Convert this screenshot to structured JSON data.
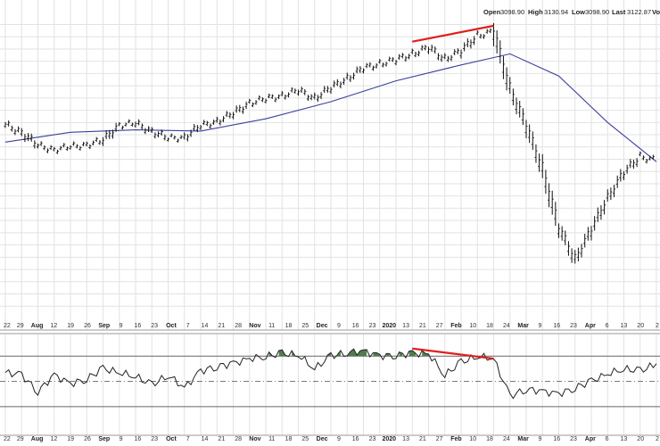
{
  "ohlc": {
    "open_label": "Open",
    "open_value": "3098.90",
    "high_label": "High",
    "high_value": "3130.94",
    "low_label": "Low",
    "low_value": "3098.90",
    "last_label": "Last",
    "last_value": "3122.87",
    "extra_label": "Volu"
  },
  "colors": {
    "price_bar": "#111111",
    "moving_average": "#3b3f9e",
    "trendline": "#e0201c",
    "oscillator": "#222222",
    "overbought_fill": "#4e7d4b",
    "oversold_fill": "#8e3f3c",
    "grid": "#e2e2e2",
    "threshold": "#666666"
  },
  "x_axis_labels": [
    {
      "text": "22",
      "major": false
    },
    {
      "text": "29",
      "major": false
    },
    {
      "text": "Aug",
      "major": true
    },
    {
      "text": "12",
      "major": false
    },
    {
      "text": "19",
      "major": false
    },
    {
      "text": "26",
      "major": false
    },
    {
      "text": "Sep",
      "major": true
    },
    {
      "text": "9",
      "major": false
    },
    {
      "text": "16",
      "major": false
    },
    {
      "text": "23",
      "major": false
    },
    {
      "text": "Oct",
      "major": true
    },
    {
      "text": "7",
      "major": false
    },
    {
      "text": "14",
      "major": false
    },
    {
      "text": "21",
      "major": false
    },
    {
      "text": "28",
      "major": false
    },
    {
      "text": "Nov",
      "major": true
    },
    {
      "text": "11",
      "major": false
    },
    {
      "text": "18",
      "major": false
    },
    {
      "text": "25",
      "major": false
    },
    {
      "text": "Dec",
      "major": true
    },
    {
      "text": "9",
      "major": false
    },
    {
      "text": "16",
      "major": false
    },
    {
      "text": "23",
      "major": false
    },
    {
      "text": "2020",
      "major": true
    },
    {
      "text": "13",
      "major": false
    },
    {
      "text": "21",
      "major": false
    },
    {
      "text": "27",
      "major": false
    },
    {
      "text": "Feb",
      "major": true
    },
    {
      "text": "10",
      "major": false
    },
    {
      "text": "18",
      "major": false
    },
    {
      "text": "24",
      "major": false
    },
    {
      "text": "Mar",
      "major": true
    },
    {
      "text": "9",
      "major": false
    },
    {
      "text": "16",
      "major": false
    },
    {
      "text": "23",
      "major": false
    },
    {
      "text": "Apr",
      "major": true
    },
    {
      "text": "6",
      "major": false
    },
    {
      "text": "13",
      "major": false
    },
    {
      "text": "20",
      "major": false
    },
    {
      "text": "2",
      "major": false
    }
  ],
  "chart_data": {
    "type": "line",
    "title": "",
    "xlabel": "",
    "ylabel": "",
    "grid": true,
    "legend": "none",
    "price_series": {
      "name": "",
      "x": [
        "Jul 22",
        "Jul 29",
        "Aug 5",
        "Aug 12",
        "Aug 19",
        "Aug 26",
        "Sep 2",
        "Sep 9",
        "Sep 16",
        "Sep 23",
        "Sep 30",
        "Oct 7",
        "Oct 14",
        "Oct 21",
        "Oct 28",
        "Nov 4",
        "Nov 11",
        "Nov 18",
        "Nov 25",
        "Dec 2",
        "Dec 9",
        "Dec 16",
        "Dec 23",
        "Dec 30",
        "Jan 6",
        "Jan 13",
        "Jan 21",
        "Jan 27",
        "Feb 3",
        "Feb 10",
        "Feb 18",
        "Feb 24",
        "Mar 2",
        "Mar 9",
        "Mar 16",
        "Mar 23",
        "Mar 30",
        "Apr 6",
        "Apr 13",
        "Apr 20",
        "Apr 27"
      ],
      "close": [
        2990,
        2960,
        2905,
        2890,
        2900,
        2910,
        2925,
        2990,
        2995,
        2965,
        2935,
        2940,
        2985,
        3005,
        3035,
        3080,
        3095,
        3110,
        3130,
        3100,
        3140,
        3180,
        3220,
        3240,
        3255,
        3280,
        3305,
        3260,
        3290,
        3355,
        3370,
        3140,
        2985,
        2810,
        2570,
        2440,
        2560,
        2690,
        2795,
        2860,
        2845
      ],
      "ylim": [
        2200,
        3420
      ]
    },
    "moving_average": {
      "name": "",
      "x": [
        "Jul 22",
        "Aug 19",
        "Sep 16",
        "Oct 14",
        "Nov 11",
        "Dec 9",
        "Jan 6",
        "Feb 3",
        "Feb 24",
        "Mar 16",
        "Apr 6",
        "Apr 27"
      ],
      "values": [
        2920,
        2960,
        2970,
        2965,
        3015,
        3085,
        3170,
        3235,
        3280,
        3190,
        3000,
        2840
      ]
    },
    "price_trendline": {
      "from": {
        "x": "Jan 13",
        "y": 3330
      },
      "to": {
        "x": "Feb 18",
        "y": 3395
      }
    },
    "oscillator": {
      "name": "",
      "values": [
        57,
        55,
        42,
        55,
        48,
        52,
        60,
        57,
        54,
        47,
        55,
        45,
        58,
        62,
        64,
        68,
        70,
        72,
        71,
        60,
        70,
        73,
        74,
        70,
        71,
        72,
        72,
        55,
        65,
        70,
        68,
        38,
        44,
        42,
        40,
        45,
        50,
        56,
        60,
        58,
        64
      ],
      "upper_level": 70,
      "lower_level": 30,
      "ylim": [
        20,
        85
      ]
    },
    "oscillator_trendline": {
      "from": {
        "x": "Jan 13",
        "y": 76
      },
      "to": {
        "x": "Feb 18",
        "y": 68
      }
    }
  }
}
